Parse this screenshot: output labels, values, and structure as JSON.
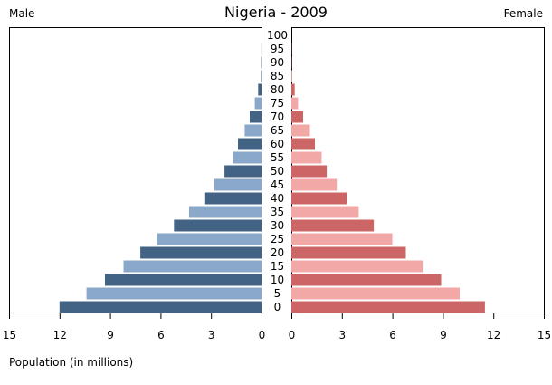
{
  "chart_data": {
    "type": "bar",
    "title": "Nigeria - 2009",
    "left_label": "Male",
    "right_label": "Female",
    "xlabel": "Population (in millions)",
    "xlim": [
      0,
      15
    ],
    "x_ticks": [
      "15",
      "12",
      "9",
      "6",
      "3",
      "0",
      "0",
      "3",
      "6",
      "9",
      "12",
      "15"
    ],
    "categories": [
      "0",
      "5",
      "10",
      "15",
      "20",
      "25",
      "30",
      "35",
      "40",
      "45",
      "50",
      "55",
      "60",
      "65",
      "70",
      "75",
      "80",
      "85",
      "90",
      "95",
      "100"
    ],
    "series": [
      {
        "side": "male",
        "colors": [
          "#436385",
          "#8aa8c9"
        ],
        "values": [
          12.0,
          10.4,
          9.3,
          8.2,
          7.2,
          6.2,
          5.2,
          4.3,
          3.4,
          2.8,
          2.2,
          1.7,
          1.4,
          1.0,
          0.7,
          0.4,
          0.2,
          0.05,
          0.02,
          0.01,
          0.0
        ]
      },
      {
        "side": "female",
        "colors": [
          "#cc6666",
          "#f3a8a8"
        ],
        "values": [
          11.5,
          10.0,
          8.9,
          7.8,
          6.8,
          6.0,
          4.9,
          4.0,
          3.3,
          2.7,
          2.1,
          1.8,
          1.4,
          1.1,
          0.7,
          0.4,
          0.2,
          0.05,
          0.02,
          0.01,
          0.0
        ]
      }
    ]
  }
}
